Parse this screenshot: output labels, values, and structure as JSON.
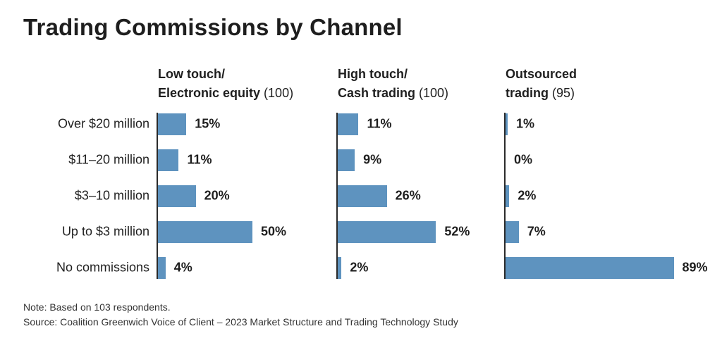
{
  "chart_data": {
    "type": "bar",
    "orientation": "horizontal",
    "title": "Trading Commissions by Channel",
    "categories": [
      "Over $20 million",
      "$11–20 million",
      "$3–10 million",
      "Up to $3 million",
      "No commissions"
    ],
    "series": [
      {
        "name_line1": "Low touch/",
        "name_line2": "Electronic equity",
        "n": "(100)",
        "values": [
          15,
          11,
          20,
          50,
          4
        ],
        "labels": [
          "15%",
          "11%",
          "20%",
          "50%",
          "4%"
        ]
      },
      {
        "name_line1": "High touch/",
        "name_line2": "Cash trading",
        "n": "(100)",
        "values": [
          11,
          9,
          26,
          52,
          2
        ],
        "labels": [
          "11%",
          "9%",
          "26%",
          "52%",
          "2%"
        ]
      },
      {
        "name_line1": "Outsourced",
        "name_line2": "trading",
        "n": "(95)",
        "values": [
          1,
          0,
          2,
          7,
          89
        ],
        "labels": [
          "1%",
          "0%",
          "2%",
          "7%",
          "89%"
        ]
      }
    ],
    "unit": "%",
    "bar_color": "#5e93bf"
  },
  "notes": {
    "note": "Note: Based on 103 respondents.",
    "source": "Source: Coalition Greenwich Voice of Client – 2023 Market Structure and Trading Technology Study"
  }
}
